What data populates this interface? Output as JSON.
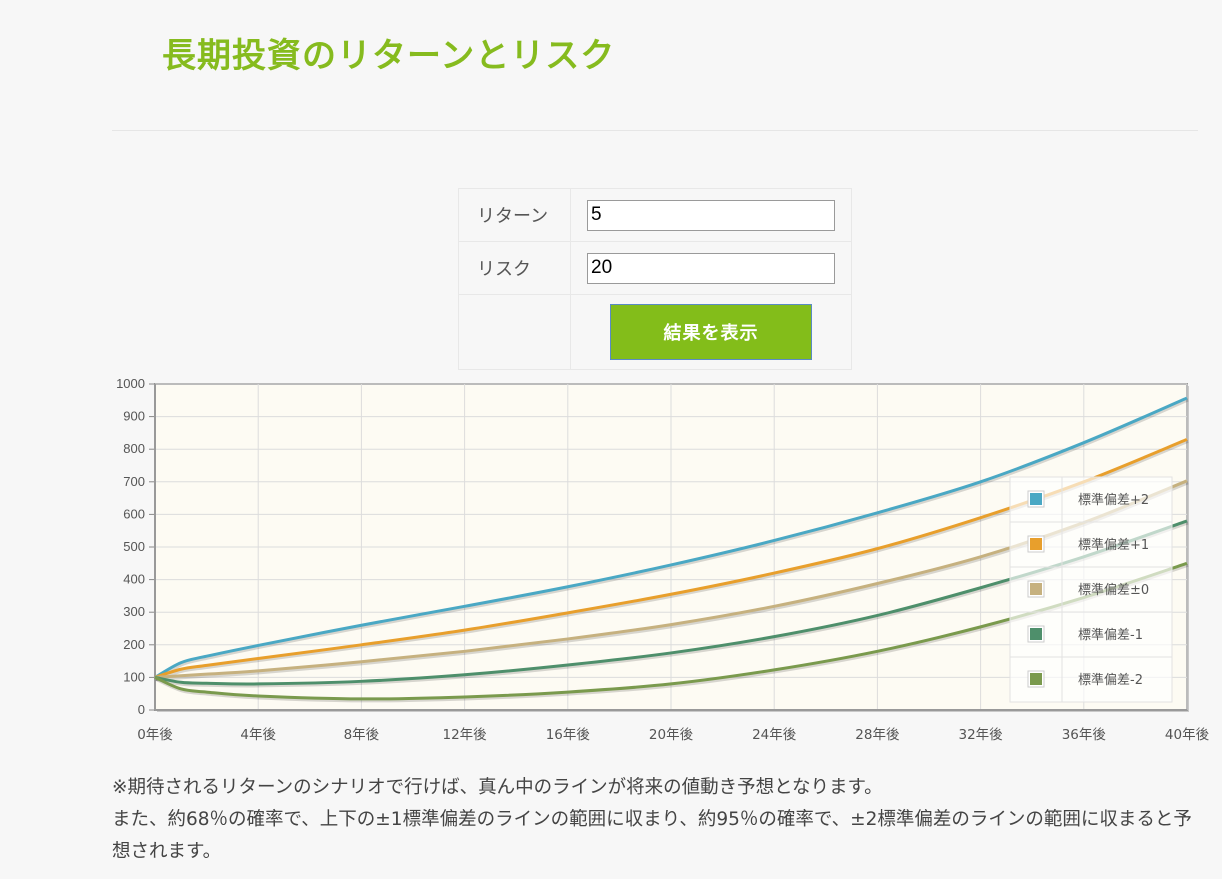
{
  "page": {
    "title": "長期投資のリターンとリスク"
  },
  "form": {
    "return_label": "リターン",
    "return_value": "5",
    "risk_label": "リスク",
    "risk_value": "20",
    "submit_label": "結果を表示"
  },
  "chart_data": {
    "type": "line",
    "title": "",
    "xlabel": "",
    "ylabel": "",
    "ylim": [
      0,
      1000
    ],
    "xlim": [
      0,
      40
    ],
    "grid": true,
    "legend_position": "right",
    "x_ticks": [
      "0年後",
      "4年後",
      "8年後",
      "12年後",
      "16年後",
      "20年後",
      "24年後",
      "28年後",
      "32年後",
      "36年後",
      "40年後"
    ],
    "x_tick_values": [
      0,
      4,
      8,
      12,
      16,
      20,
      24,
      28,
      32,
      36,
      40
    ],
    "y_ticks": [
      "0",
      "100",
      "200",
      "300",
      "400",
      "500",
      "600",
      "700",
      "800",
      "900",
      "1000"
    ],
    "y_tick_values": [
      0,
      100,
      200,
      300,
      400,
      500,
      600,
      700,
      800,
      900,
      1000
    ],
    "x": [
      0,
      1,
      2,
      4,
      8,
      12,
      16,
      20,
      24,
      28,
      32,
      36,
      40
    ],
    "series": [
      {
        "name": "標準偏差+2",
        "color": "#4aa8c4",
        "values": [
          100,
          145,
          165,
          198,
          260,
          318,
          378,
          445,
          520,
          605,
          700,
          820,
          957
        ]
      },
      {
        "name": "標準偏差+1",
        "color": "#e89f2c",
        "values": [
          100,
          125,
          137,
          158,
          200,
          245,
          298,
          355,
          420,
          495,
          590,
          700,
          830
        ]
      },
      {
        "name": "標準偏差±0",
        "color": "#c6b17f",
        "values": [
          100,
          105,
          110,
          120,
          148,
          180,
          218,
          262,
          318,
          388,
          470,
          575,
          703
        ]
      },
      {
        "name": "標準偏差-1",
        "color": "#4e8f6b",
        "values": [
          100,
          85,
          82,
          80,
          88,
          108,
          138,
          175,
          225,
          290,
          375,
          470,
          580
        ]
      },
      {
        "name": "標準偏差-2",
        "color": "#7a9a4d",
        "values": [
          100,
          65,
          55,
          43,
          34,
          40,
          55,
          80,
          123,
          180,
          255,
          345,
          450
        ]
      }
    ]
  },
  "note": {
    "line1": "※期待されるリターンのシナリオで行けば、真ん中のラインが将来の値動き予想となります。",
    "line2": "また、約68％の確率で、上下の±1標準偏差のラインの範囲に収まり、約95％の確率で、±2標準偏差のラインの範囲に収まると予想されます。"
  }
}
